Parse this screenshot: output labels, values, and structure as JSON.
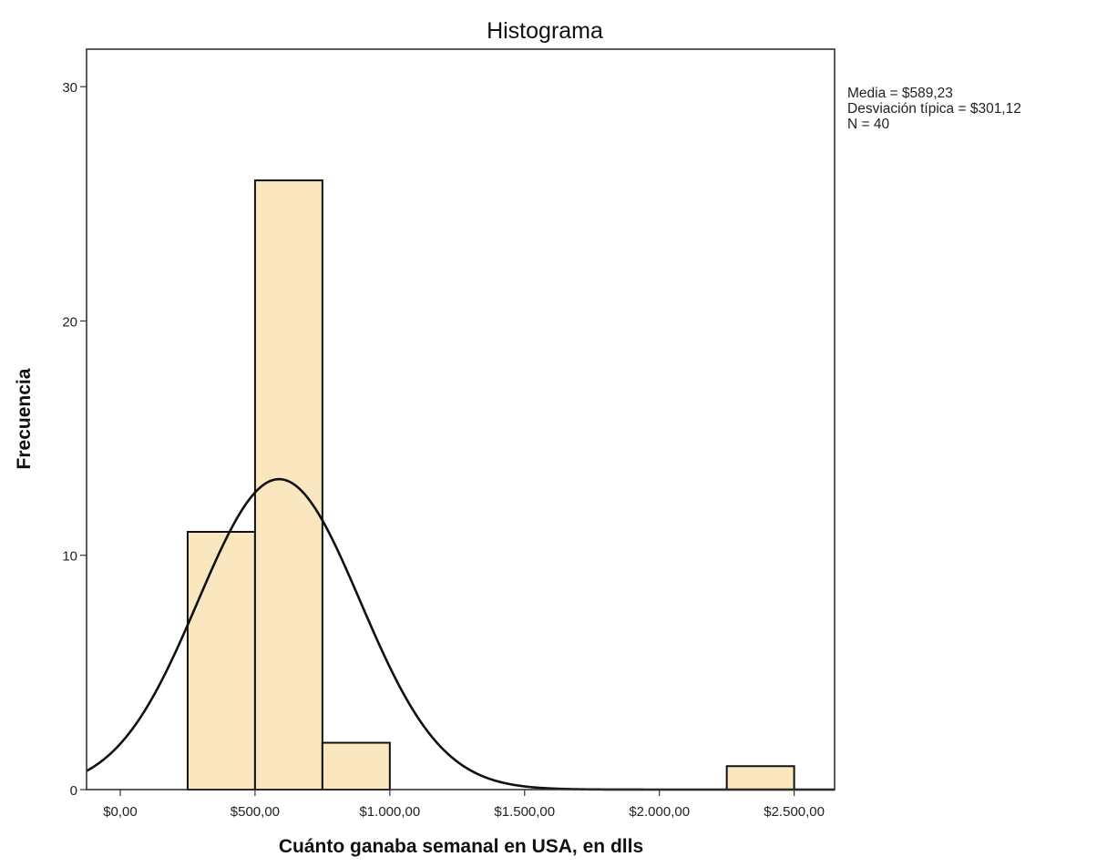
{
  "chart_data": {
    "type": "bar",
    "title": "Histograma",
    "xlabel": "Cuánto ganaba semanal en USA, en dlls",
    "ylabel": "Frecuencia",
    "xlim": [
      -125,
      2650
    ],
    "ylim": [
      0,
      31.6
    ],
    "x_ticks": [
      0,
      500,
      1000,
      1500,
      2000,
      2500
    ],
    "x_tick_labels": [
      "$0,00",
      "$500,00",
      "$1.000,00",
      "$1.500,00",
      "$2.000,00",
      "$2.500,00"
    ],
    "y_ticks": [
      0,
      10,
      20,
      30
    ],
    "y_tick_labels": [
      "0",
      "10",
      "20",
      "30"
    ],
    "bin_width": 250,
    "bins": [
      {
        "start": 250,
        "end": 500,
        "count": 11
      },
      {
        "start": 500,
        "end": 750,
        "count": 26
      },
      {
        "start": 750,
        "end": 1000,
        "count": 2
      },
      {
        "start": 2250,
        "end": 2500,
        "count": 1
      }
    ],
    "normal_curve": {
      "mean": 589.23,
      "sd": 301.12,
      "n": 40
    },
    "stats_lines": [
      "Media = $589,23",
      "Desviación típica = $301,12",
      "N = 40"
    ],
    "bar_color": "#fbe7bf",
    "grid": false,
    "legend": "none"
  }
}
